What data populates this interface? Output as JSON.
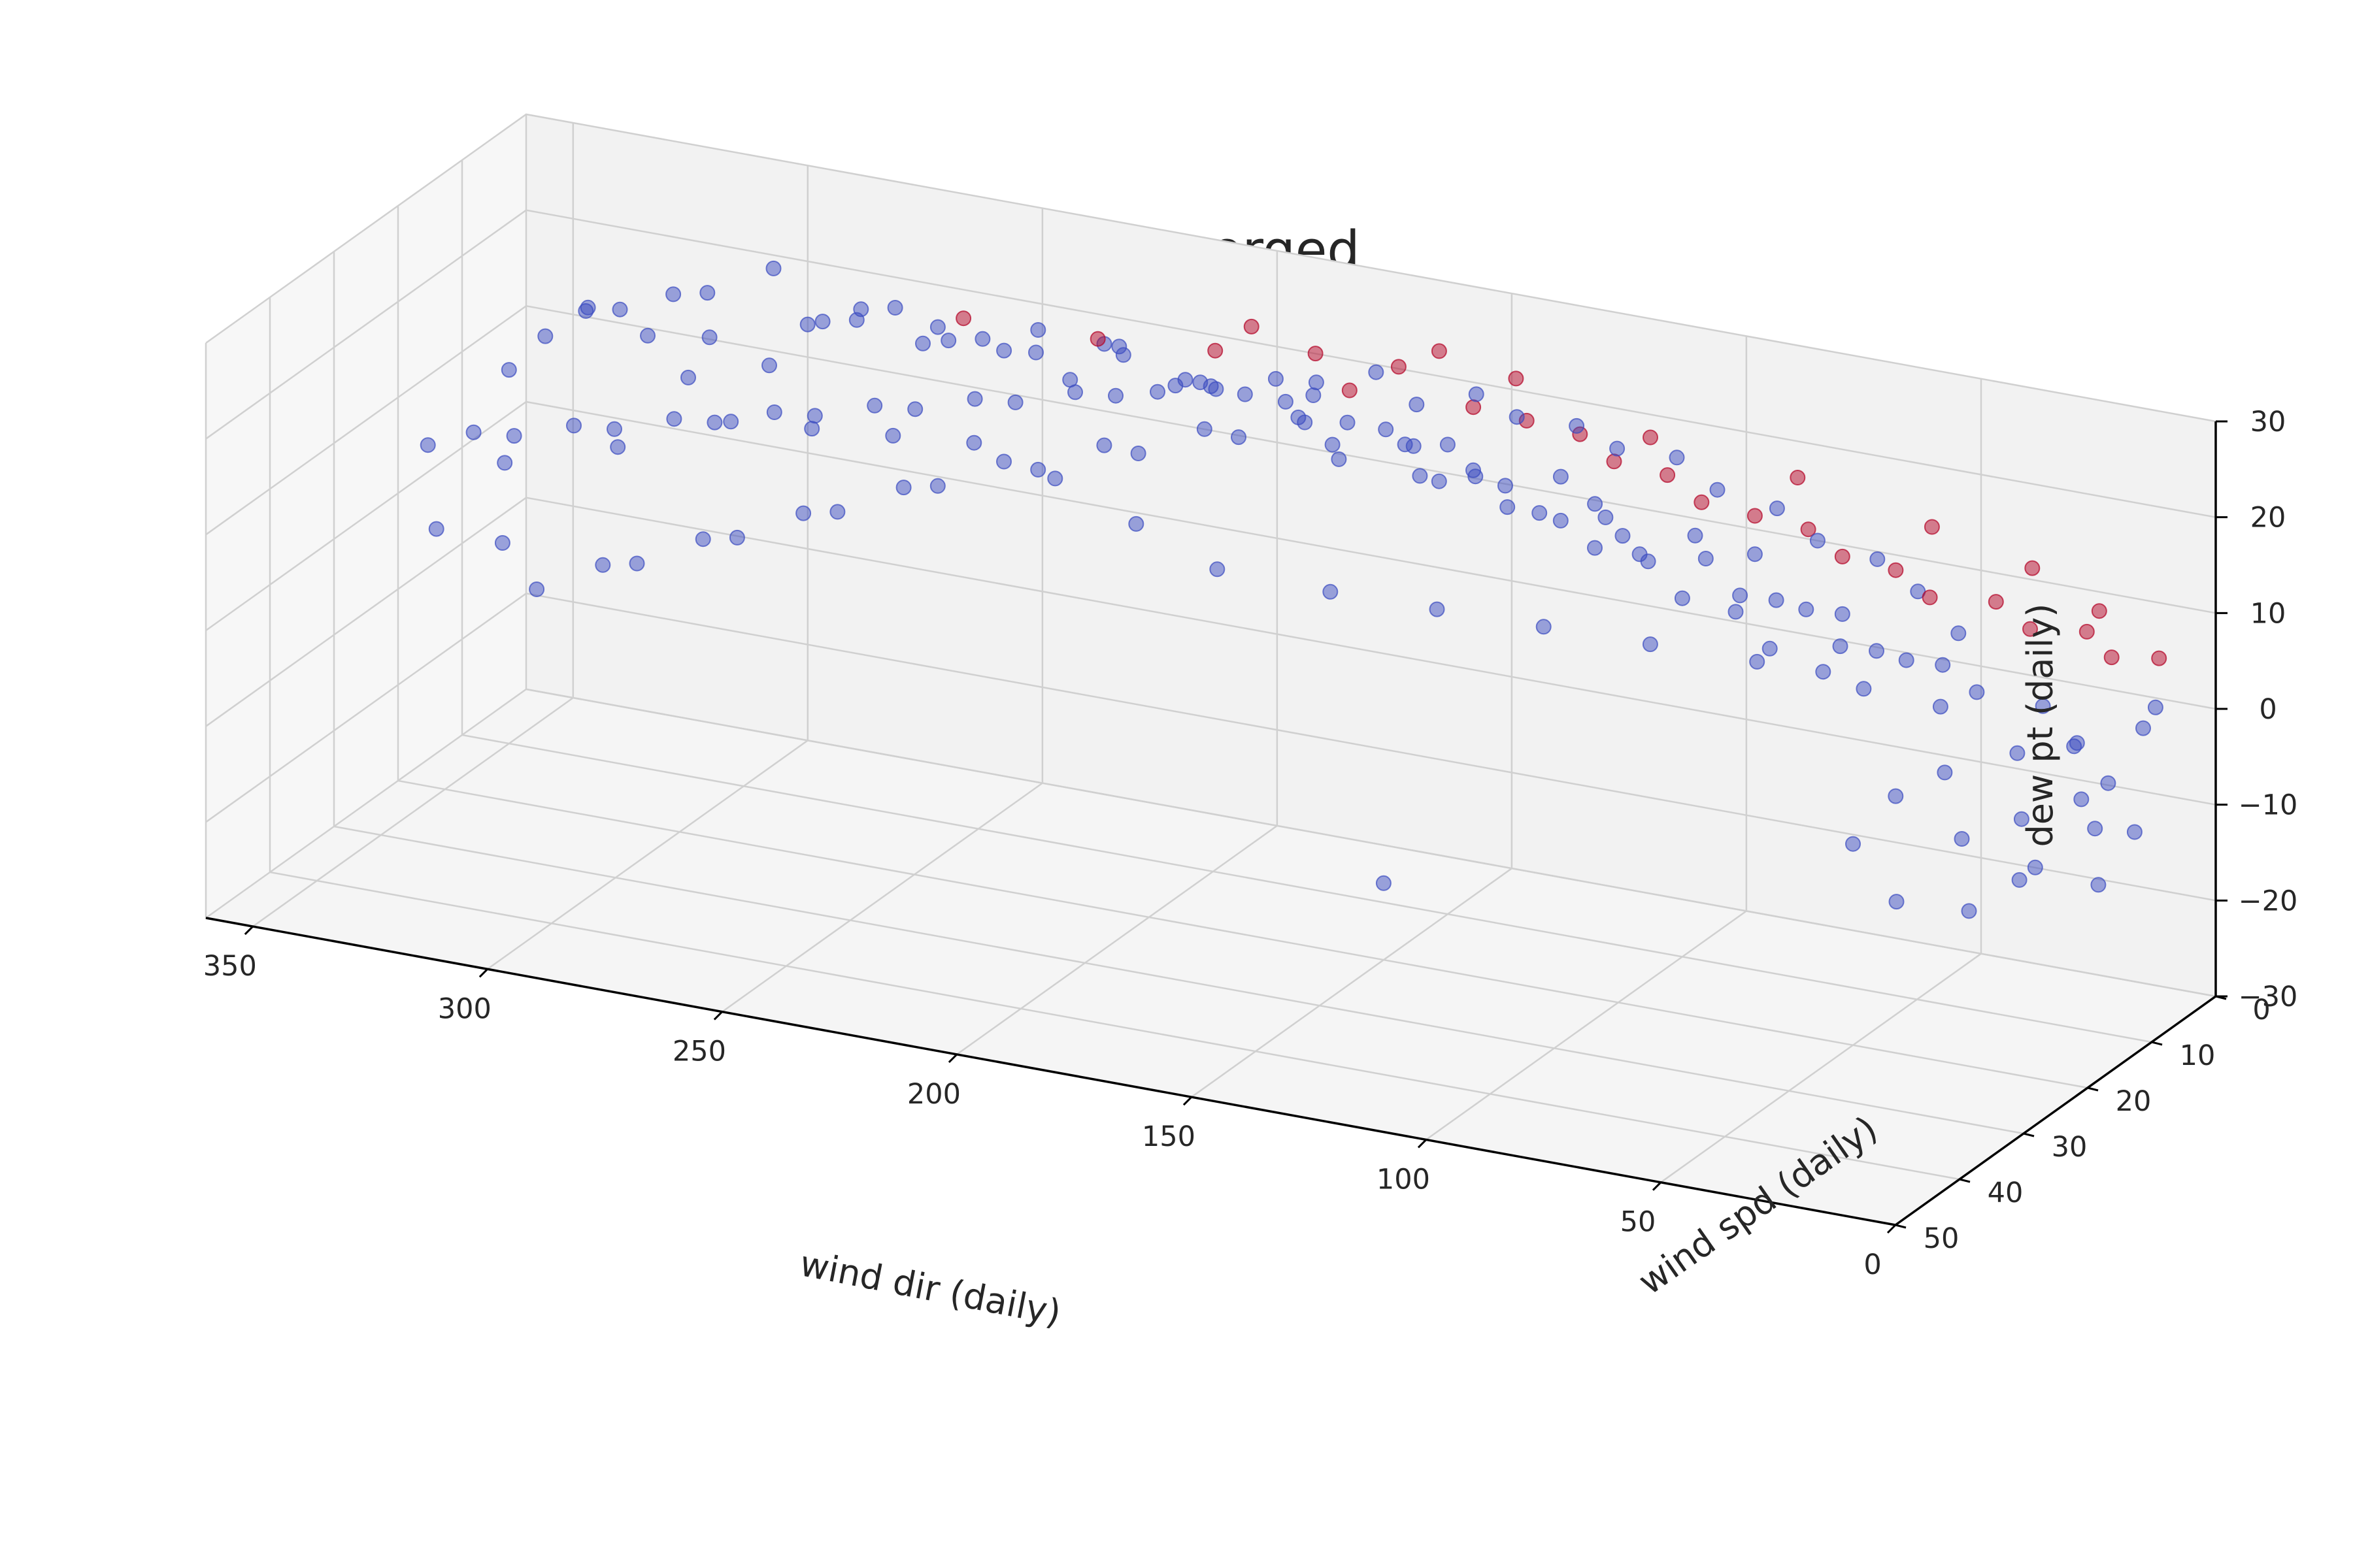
{
  "chart_data": {
    "type": "scatter",
    "projection": "3d",
    "title": "fog merged",
    "xlabel": "wind dir (daily)",
    "ylabel": "wind spd (daily)",
    "zlabel": "dew pt (daily)",
    "xlim": [
      0,
      360
    ],
    "ylim": [
      0,
      50
    ],
    "zlim": [
      -30,
      30
    ],
    "x_ticks": [
      "350",
      "300",
      "250",
      "200",
      "150",
      "100",
      "50",
      "0"
    ],
    "y_ticks": [
      "0",
      "10",
      "20",
      "30",
      "40",
      "50"
    ],
    "z_ticks": [
      "30",
      "20",
      "10",
      "0",
      "−10",
      "−20",
      "−30"
    ],
    "grid": true,
    "marker_alpha": 0.5,
    "colormap": "coolwarm",
    "series": [
      {
        "color": "#3b4cc0",
        "points": [
          [
            320,
            4,
            8
          ],
          [
            330,
            3,
            11
          ],
          [
            340,
            5,
            14
          ],
          [
            300,
            6,
            12
          ],
          [
            310,
            8,
            15
          ],
          [
            290,
            5,
            17
          ],
          [
            280,
            7,
            19
          ],
          [
            270,
            4,
            16
          ],
          [
            260,
            9,
            21
          ],
          [
            250,
            6,
            18
          ],
          [
            240,
            8,
            22
          ],
          [
            230,
            5,
            20
          ],
          [
            220,
            10,
            23
          ],
          [
            210,
            7,
            19
          ],
          [
            200,
            12,
            22
          ],
          [
            190,
            6,
            18
          ],
          [
            180,
            9,
            21
          ],
          [
            170,
            11,
            20
          ],
          [
            160,
            8,
            17
          ],
          [
            150,
            10,
            19
          ],
          [
            140,
            13,
            18
          ],
          [
            130,
            7,
            16
          ],
          [
            120,
            9,
            15
          ],
          [
            110,
            12,
            14
          ],
          [
            100,
            8,
            13
          ],
          [
            90,
            6,
            11
          ],
          [
            80,
            10,
            9
          ],
          [
            70,
            7,
            7
          ],
          [
            60,
            9,
            5
          ],
          [
            50,
            6,
            3
          ],
          [
            40,
            8,
            2
          ],
          [
            30,
            5,
            0
          ],
          [
            20,
            7,
            -2
          ],
          [
            10,
            4,
            -1
          ],
          [
            30,
            9,
            -3
          ],
          [
            45,
            10,
            1
          ],
          [
            55,
            8,
            4
          ],
          [
            65,
            11,
            6
          ],
          [
            75,
            9,
            8
          ],
          [
            85,
            12,
            10
          ],
          [
            95,
            10,
            12
          ],
          [
            105,
            13,
            13
          ],
          [
            115,
            11,
            15
          ],
          [
            125,
            14,
            16
          ],
          [
            135,
            12,
            17
          ],
          [
            145,
            15,
            18
          ],
          [
            155,
            13,
            20
          ],
          [
            165,
            16,
            19
          ],
          [
            175,
            14,
            21
          ],
          [
            185,
            17,
            20
          ],
          [
            195,
            15,
            19
          ],
          [
            205,
            18,
            17
          ],
          [
            215,
            16,
            16
          ],
          [
            225,
            19,
            14
          ],
          [
            235,
            17,
            13
          ],
          [
            245,
            20,
            11
          ],
          [
            255,
            18,
            9
          ],
          [
            265,
            21,
            7
          ],
          [
            275,
            19,
            5
          ],
          [
            285,
            22,
            3
          ],
          [
            295,
            20,
            1
          ],
          [
            305,
            23,
            -1
          ],
          [
            315,
            21,
            -3
          ],
          [
            325,
            24,
            -5
          ],
          [
            335,
            22,
            -2
          ],
          [
            345,
            25,
            0
          ],
          [
            340,
            18,
            4
          ],
          [
            320,
            15,
            6
          ],
          [
            300,
            12,
            9
          ],
          [
            280,
            14,
            11
          ],
          [
            260,
            16,
            13
          ],
          [
            240,
            18,
            15
          ],
          [
            220,
            20,
            14
          ],
          [
            200,
            22,
            12
          ],
          [
            180,
            24,
            10
          ],
          [
            160,
            21,
            8
          ],
          [
            140,
            19,
            7
          ],
          [
            120,
            17,
            6
          ],
          [
            100,
            15,
            5
          ],
          [
            80,
            13,
            4
          ],
          [
            60,
            11,
            2
          ],
          [
            40,
            13,
            -4
          ],
          [
            25,
            12,
            -8
          ],
          [
            15,
            10,
            -6
          ],
          [
            35,
            14,
            -10
          ],
          [
            20,
            16,
            -12
          ],
          [
            10,
            11,
            -14
          ],
          [
            5,
            9,
            -9
          ],
          [
            28,
            18,
            -15
          ],
          [
            18,
            15,
            -11
          ],
          [
            8,
            13,
            -7
          ],
          [
            45,
            17,
            -5
          ],
          [
            50,
            20,
            -9
          ],
          [
            38,
            22,
            -13
          ],
          [
            22,
            6,
            -3
          ],
          [
            12,
            8,
            -5
          ],
          [
            6,
            5,
            2
          ],
          [
            48,
            5,
            6
          ],
          [
            58,
            4,
            9
          ],
          [
            68,
            3,
            11
          ],
          [
            78,
            5,
            13
          ],
          [
            88,
            4,
            15
          ],
          [
            98,
            6,
            17
          ],
          [
            108,
            5,
            19
          ],
          [
            118,
            7,
            20
          ],
          [
            128,
            6,
            21
          ],
          [
            138,
            8,
            22
          ],
          [
            148,
            7,
            23
          ],
          [
            158,
            9,
            22
          ],
          [
            168,
            8,
            24
          ],
          [
            178,
            10,
            23
          ],
          [
            188,
            9,
            22
          ],
          [
            198,
            11,
            21
          ],
          [
            208,
            10,
            20
          ],
          [
            218,
            12,
            19
          ],
          [
            228,
            11,
            18
          ],
          [
            238,
            13,
            17
          ],
          [
            248,
            12,
            16
          ],
          [
            258,
            14,
            15
          ],
          [
            268,
            13,
            14
          ],
          [
            278,
            15,
            13
          ],
          [
            288,
            14,
            12
          ],
          [
            298,
            16,
            11
          ],
          [
            308,
            15,
            10
          ],
          [
            318,
            17,
            9
          ],
          [
            328,
            16,
            8
          ],
          [
            338,
            18,
            7
          ],
          [
            348,
            17,
            6
          ],
          [
            355,
            19,
            5
          ],
          [
            350,
            10,
            9
          ],
          [
            345,
            8,
            12
          ],
          [
            335,
            9,
            16
          ],
          [
            325,
            11,
            18
          ],
          [
            315,
            10,
            20
          ],
          [
            305,
            12,
            22
          ],
          [
            295,
            9,
            24
          ],
          [
            285,
            11,
            20
          ],
          [
            275,
            10,
            22
          ],
          [
            265,
            12,
            24
          ],
          [
            255,
            11,
            21
          ],
          [
            245,
            13,
            23
          ],
          [
            235,
            12,
            22
          ],
          [
            225,
            14,
            21
          ],
          [
            215,
            13,
            24
          ],
          [
            205,
            15,
            22
          ],
          [
            195,
            14,
            23
          ],
          [
            185,
            16,
            24
          ],
          [
            175,
            15,
            22
          ],
          [
            165,
            17,
            21
          ],
          [
            155,
            16,
            23
          ],
          [
            145,
            18,
            20
          ],
          [
            135,
            17,
            21
          ],
          [
            125,
            19,
            19
          ],
          [
            115,
            18,
            18
          ],
          [
            105,
            20,
            17
          ],
          [
            95,
            19,
            16
          ],
          [
            85,
            21,
            14
          ],
          [
            75,
            20,
            13
          ],
          [
            65,
            22,
            11
          ],
          [
            55,
            21,
            9
          ],
          [
            150,
            20,
            -22
          ]
        ]
      },
      {
        "color": "#b40426",
        "points": [
          [
            200,
            4,
            24
          ],
          [
            185,
            5,
            23
          ],
          [
            170,
            3,
            22
          ],
          [
            160,
            4,
            25
          ],
          [
            150,
            6,
            21
          ],
          [
            140,
            5,
            20
          ],
          [
            130,
            4,
            19
          ],
          [
            120,
            6,
            18
          ],
          [
            110,
            5,
            17
          ],
          [
            100,
            7,
            16
          ],
          [
            90,
            6,
            15
          ],
          [
            80,
            5,
            14
          ],
          [
            70,
            7,
            13
          ],
          [
            60,
            6,
            12
          ],
          [
            50,
            8,
            11
          ],
          [
            40,
            5,
            10
          ],
          [
            30,
            7,
            9
          ],
          [
            22,
            4,
            8
          ],
          [
            14,
            6,
            7
          ],
          [
            8,
            3,
            6
          ],
          [
            205,
            6,
            22
          ],
          [
            175,
            7,
            21
          ],
          [
            145,
            3,
            23
          ],
          [
            115,
            4,
            20
          ],
          [
            85,
            3,
            18
          ],
          [
            55,
            4,
            16
          ],
          [
            35,
            3,
            13
          ],
          [
            18,
            5,
            11
          ],
          [
            260,
            5,
            20
          ],
          [
            230,
            6,
            21
          ]
        ]
      }
    ]
  }
}
